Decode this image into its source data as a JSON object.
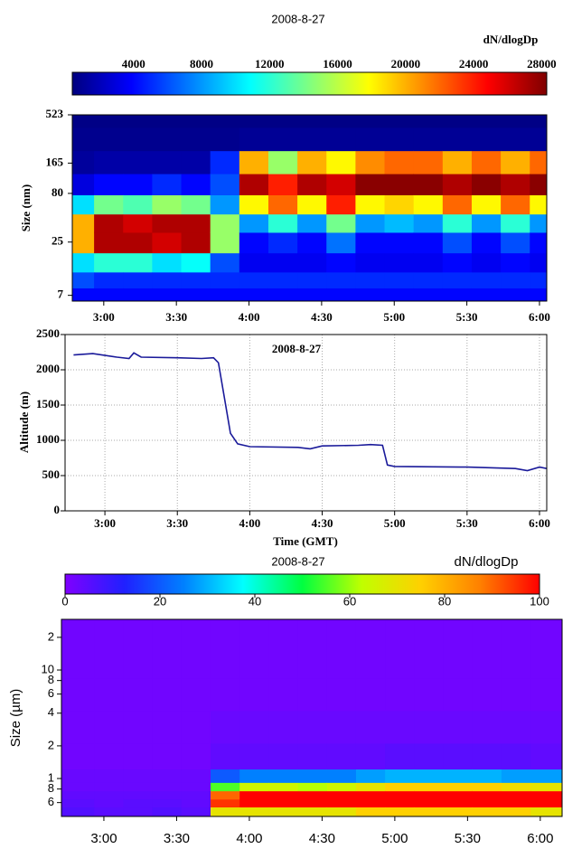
{
  "chart_data": [
    {
      "type": "heatmap",
      "title": "2008-8-27",
      "colorbar_label": "dN/dlogDp",
      "y_label": "Size (nm)",
      "x": [
        170,
        182,
        194,
        206,
        218,
        230,
        242,
        254,
        266,
        278,
        290,
        302,
        314,
        326,
        338,
        350,
        362
      ],
      "y": [
        7,
        10,
        15,
        25,
        40,
        60,
        100,
        165,
        300,
        500
      ],
      "z": [
        [
          4000,
          6000,
          10000,
          20000,
          20000,
          10000,
          3000,
          1200,
          800,
          600
        ],
        [
          4000,
          5000,
          12000,
          27000,
          27000,
          14000,
          4000,
          1500,
          800,
          600
        ],
        [
          4000,
          5000,
          12000,
          27000,
          26000,
          13000,
          4000,
          1500,
          800,
          600
        ],
        [
          4000,
          5000,
          10000,
          26000,
          27000,
          15000,
          5000,
          1500,
          800,
          600
        ],
        [
          4000,
          5000,
          11000,
          27000,
          27000,
          14000,
          4000,
          1500,
          800,
          600
        ],
        [
          4000,
          5000,
          6000,
          15000,
          15000,
          8000,
          6000,
          5000,
          800,
          600
        ],
        [
          4000,
          5000,
          3500,
          4000,
          8000,
          18000,
          27000,
          20000,
          1000,
          600
        ],
        [
          4000,
          5000,
          3500,
          5000,
          12000,
          22000,
          24000,
          15000,
          1000,
          600
        ],
        [
          4000,
          5000,
          3500,
          4000,
          8000,
          18000,
          27000,
          20000,
          1000,
          600
        ],
        [
          4000,
          5000,
          4000,
          7000,
          14000,
          24000,
          26000,
          18000,
          1000,
          600
        ],
        [
          4000,
          5000,
          3500,
          4000,
          8000,
          18000,
          28000,
          21000,
          1000,
          600
        ],
        [
          4000,
          5000,
          3500,
          4000,
          9000,
          19000,
          28000,
          22000,
          1000,
          600
        ],
        [
          4000,
          5000,
          3500,
          4000,
          8000,
          18000,
          28000,
          22000,
          1000,
          600
        ],
        [
          4000,
          5000,
          4000,
          6000,
          12000,
          22000,
          27000,
          20000,
          1000,
          600
        ],
        [
          4000,
          5000,
          3500,
          4000,
          8000,
          18000,
          28000,
          22000,
          1000,
          600
        ],
        [
          4000,
          5000,
          4000,
          6000,
          12000,
          22000,
          27000,
          20000,
          1000,
          600
        ],
        [
          4000,
          5000,
          3500,
          4000,
          8000,
          18000,
          28000,
          22000,
          1000,
          600
        ]
      ],
      "xlim": [
        167,
        363
      ],
      "ylim": [
        6.1,
        523
      ],
      "ylog": true,
      "xticks": [
        {
          "value": 180,
          "label": "3:00"
        },
        {
          "value": 210,
          "label": "3:30"
        },
        {
          "value": 240,
          "label": "4:00"
        },
        {
          "value": 270,
          "label": "4:30"
        },
        {
          "value": 300,
          "label": "5:00"
        },
        {
          "value": 330,
          "label": "5:30"
        },
        {
          "value": 360,
          "label": "6:00"
        }
      ],
      "yticks": [
        7,
        25,
        80,
        165,
        523
      ],
      "clim": [
        400,
        28300
      ],
      "cticks": [
        4000,
        8000,
        12000,
        16000,
        20000,
        24000,
        28000
      ],
      "colormap": [
        "#00007f",
        "#0000ff",
        "#0080ff",
        "#00ffff",
        "#80ff80",
        "#ffff00",
        "#ff8000",
        "#ff0000",
        "#7f0000"
      ]
    },
    {
      "type": "line",
      "title": "2008-8-27",
      "y_label": "Altitude (m)",
      "x_label": "Time (GMT)",
      "x": [
        167,
        175,
        185,
        190,
        192,
        195,
        210,
        220,
        225,
        227,
        230,
        232,
        235,
        240,
        260,
        265,
        270,
        285,
        290,
        295,
        297,
        300,
        330,
        350,
        355,
        360,
        363
      ],
      "values": [
        2210,
        2230,
        2180,
        2160,
        2240,
        2180,
        2170,
        2160,
        2170,
        2100,
        1500,
        1100,
        950,
        910,
        900,
        880,
        920,
        930,
        940,
        930,
        650,
        630,
        620,
        600,
        570,
        620,
        600
      ],
      "color": "#1a1a9a",
      "grid": true,
      "xlim": [
        163.5,
        363
      ],
      "ylim": [
        0,
        2500
      ],
      "xticks": [
        {
          "value": 180,
          "label": "3:00"
        },
        {
          "value": 210,
          "label": "3:30"
        },
        {
          "value": 240,
          "label": "4:00"
        },
        {
          "value": 270,
          "label": "4:30"
        },
        {
          "value": 300,
          "label": "5:00"
        },
        {
          "value": 330,
          "label": "5:30"
        },
        {
          "value": 360,
          "label": "6:00"
        }
      ],
      "yticks": [
        0,
        500,
        1000,
        1500,
        2000,
        2500
      ]
    },
    {
      "type": "heatmap",
      "title": "2008-8-27",
      "colorbar_label": "dN/dlogDp",
      "y_label": "Size (µm)",
      "x": [
        170,
        182,
        194,
        206,
        218,
        230,
        242,
        254,
        266,
        278,
        290,
        302,
        314,
        326,
        338,
        350,
        362
      ],
      "y": [
        0.5,
        0.6,
        0.7,
        0.85,
        1,
        1.5,
        3,
        6,
        12,
        25
      ],
      "z": [
        [
          6,
          5,
          4,
          3,
          3,
          2,
          2,
          2,
          2,
          2
        ],
        [
          5,
          4,
          4,
          3,
          3,
          2,
          2,
          2,
          2,
          2
        ],
        [
          5,
          5,
          4,
          3,
          3,
          2,
          2,
          2,
          2,
          2
        ],
        [
          6,
          5,
          4,
          3,
          3,
          2,
          2,
          2,
          2,
          2
        ],
        [
          5,
          4,
          4,
          3,
          3,
          2,
          2,
          2,
          2,
          2
        ],
        [
          70,
          95,
          90,
          55,
          20,
          4,
          3,
          2,
          2,
          2
        ],
        [
          70,
          100,
          100,
          65,
          25,
          4,
          3,
          2,
          2,
          2
        ],
        [
          70,
          100,
          100,
          65,
          25,
          4,
          3,
          2,
          2,
          2
        ],
        [
          70,
          100,
          100,
          62,
          25,
          4,
          3,
          2,
          2,
          2
        ],
        [
          70,
          100,
          100,
          65,
          25,
          4,
          3,
          2,
          2,
          2
        ],
        [
          75,
          100,
          100,
          70,
          28,
          4,
          3,
          2,
          2,
          2
        ],
        [
          75,
          100,
          100,
          75,
          30,
          5,
          3,
          2,
          2,
          2
        ],
        [
          75,
          100,
          100,
          75,
          30,
          5,
          3,
          2,
          2,
          2
        ],
        [
          75,
          100,
          100,
          75,
          30,
          5,
          3,
          2,
          2,
          2
        ],
        [
          75,
          100,
          100,
          75,
          30,
          5,
          3,
          2,
          2,
          2
        ],
        [
          75,
          100,
          100,
          72,
          28,
          5,
          3,
          2,
          2,
          2
        ],
        [
          70,
          100,
          100,
          70,
          28,
          4,
          3,
          2,
          2,
          2
        ]
      ],
      "xlim": [
        162.5,
        369
      ],
      "ylim": [
        0.447,
        29.3
      ],
      "ylog": true,
      "xticks": [
        {
          "value": 180,
          "label": "3:00"
        },
        {
          "value": 210,
          "label": "3:30"
        },
        {
          "value": 240,
          "label": "4:00"
        },
        {
          "value": 270,
          "label": "4:30"
        },
        {
          "value": 300,
          "label": "5:00"
        },
        {
          "value": 330,
          "label": "5:30"
        },
        {
          "value": 360,
          "label": "6:00"
        }
      ],
      "yticks": [
        {
          "value": 0.6,
          "label": "6"
        },
        {
          "value": 0.8,
          "label": "8"
        },
        1,
        {
          "value": 2,
          "label": "2"
        },
        {
          "value": 4,
          "label": "4"
        },
        {
          "value": 6,
          "label": "6"
        },
        {
          "value": 8,
          "label": "8"
        },
        10,
        {
          "value": 20,
          "label": "2"
        }
      ],
      "clim": [
        0,
        100
      ],
      "cticks": [
        0,
        20,
        40,
        60,
        80,
        100
      ],
      "colormap": [
        "#8000ff",
        "#2020ff",
        "#0080ff",
        "#00ffff",
        "#00ff40",
        "#c0ff00",
        "#ffd000",
        "#ff8000",
        "#ff0000"
      ]
    }
  ]
}
